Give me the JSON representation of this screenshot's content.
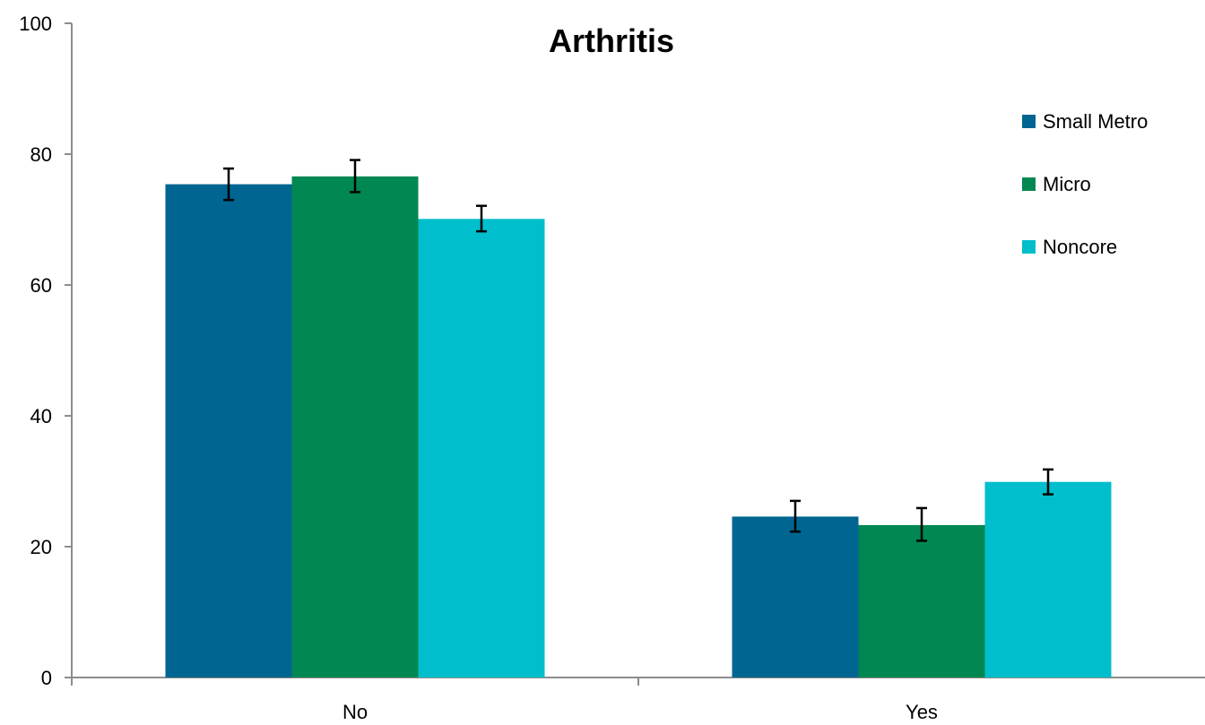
{
  "chart_data": {
    "type": "bar",
    "title": "Arthritis",
    "xlabel": "",
    "ylabel": "",
    "categories": [
      "No",
      "Yes"
    ],
    "ylim": [
      0,
      100
    ],
    "yticks": [
      "0",
      "20",
      "40",
      "60",
      "80",
      "100"
    ],
    "grid": false,
    "legend_position": "top-right",
    "series": [
      {
        "name": "Small Metro",
        "color": "#006591",
        "values": [
          75.4,
          24.6
        ],
        "error_low": [
          73.0,
          22.3
        ],
        "error_high": [
          77.8,
          27.0
        ]
      },
      {
        "name": "Micro",
        "color": "#008752",
        "values": [
          76.6,
          23.3
        ],
        "error_low": [
          74.2,
          20.9
        ],
        "error_high": [
          79.1,
          25.9
        ]
      },
      {
        "name": "Noncore",
        "color": "#00BECC",
        "values": [
          70.1,
          29.9
        ],
        "error_low": [
          68.2,
          28.0
        ],
        "error_high": [
          72.1,
          31.8
        ]
      }
    ]
  }
}
